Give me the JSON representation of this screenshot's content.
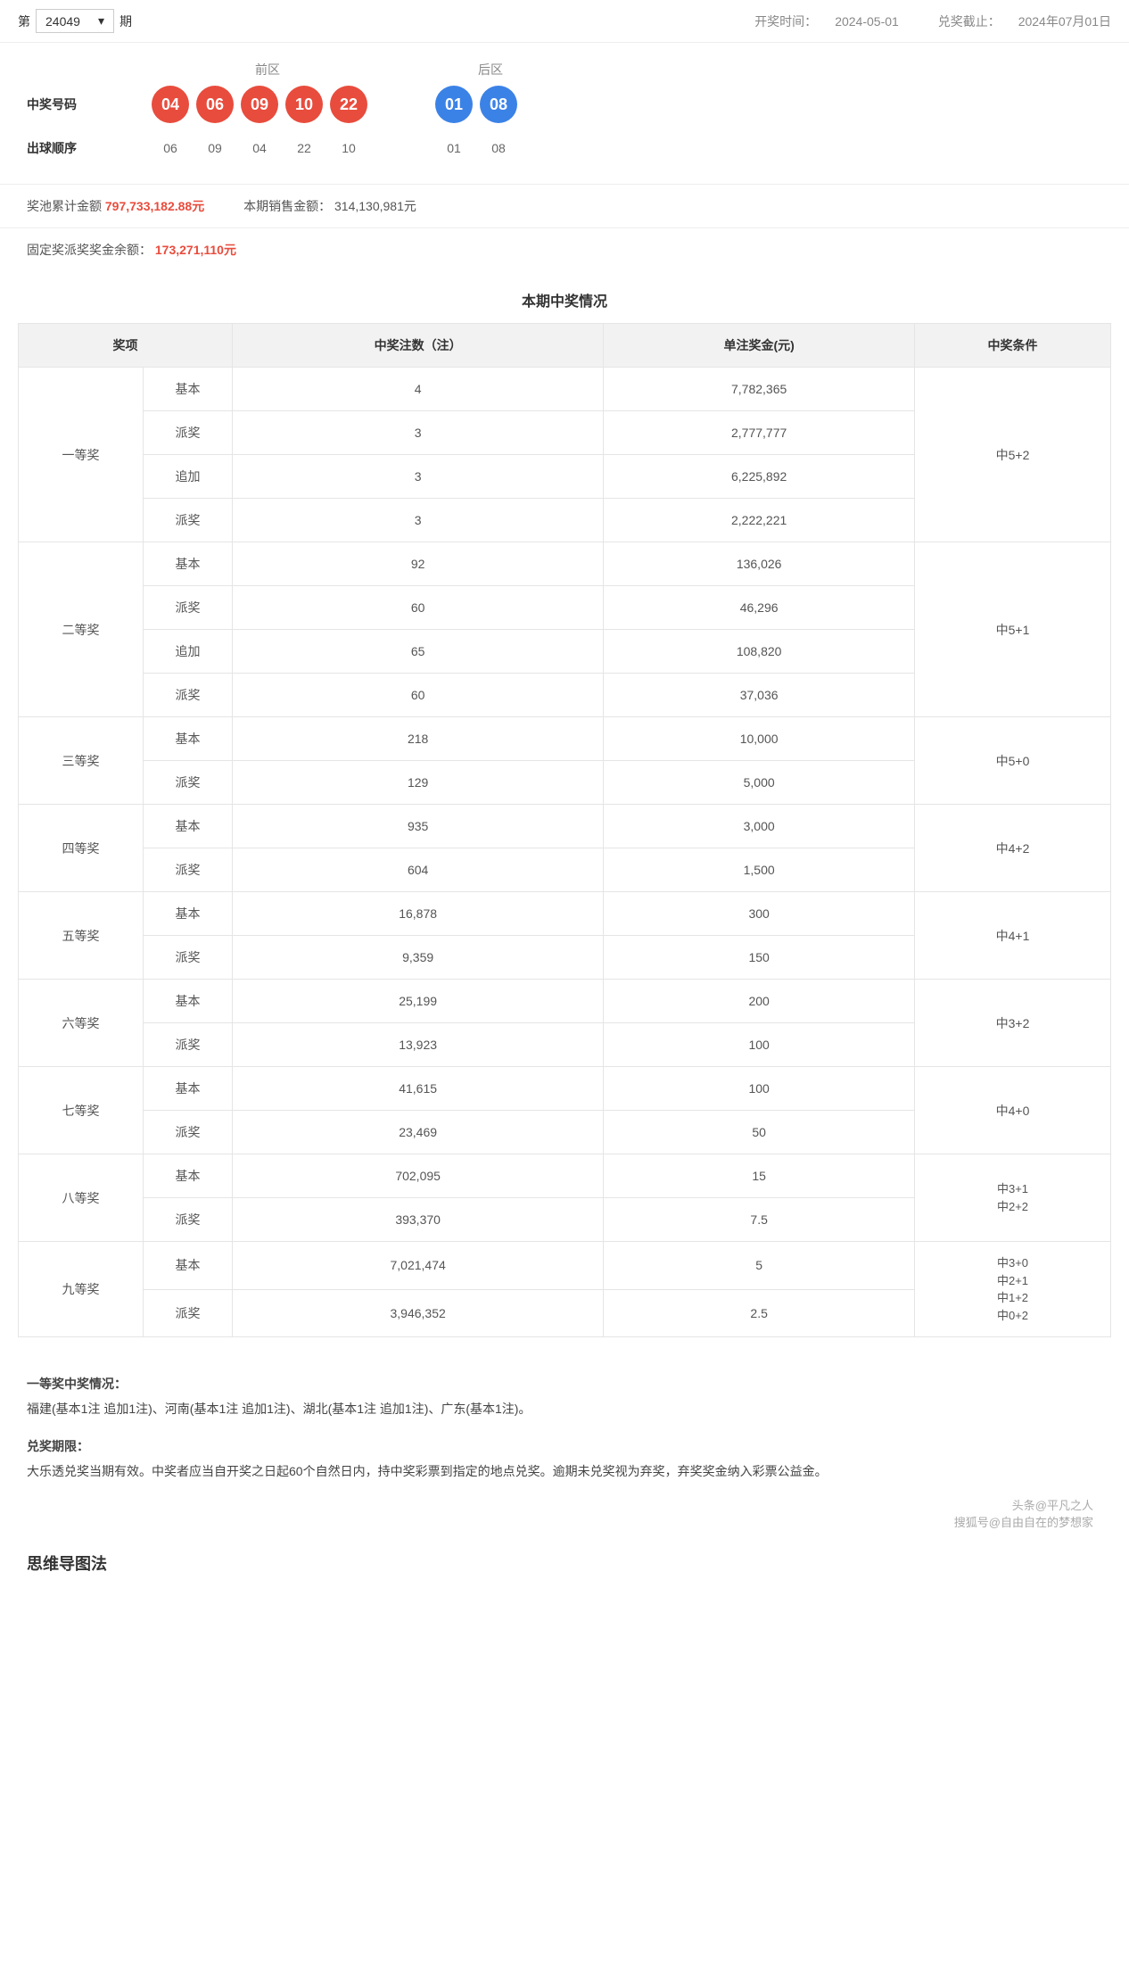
{
  "header": {
    "issue_prefix": "第",
    "issue_number": "24049",
    "issue_suffix": "期",
    "draw_time_label": "开奖时间：",
    "draw_time": "2024-05-01",
    "claim_deadline_label": "兑奖截止：",
    "claim_deadline": "2024年07月01日"
  },
  "zones": {
    "front": "前区",
    "back": "后区"
  },
  "labels": {
    "winning_numbers": "中奖号码",
    "draw_sequence": "出球顺序",
    "pool_label": "奖池累计金额",
    "pool_value": "797,733,182.88元",
    "sales_label": "本期销售金额：",
    "sales_value": "314,130,981元",
    "fixed_label": "固定奖派奖奖金余额：",
    "fixed_value": "173,271,110元"
  },
  "balls": {
    "front": [
      "04",
      "06",
      "09",
      "10",
      "22"
    ],
    "back": [
      "01",
      "08"
    ],
    "seq_front": [
      "06",
      "09",
      "04",
      "22",
      "10"
    ],
    "seq_back": [
      "01",
      "08"
    ]
  },
  "prize_section": {
    "title": "本期中奖情况",
    "columns": [
      "奖项",
      "",
      "中奖注数（注）",
      "单注奖金(元)",
      "中奖条件"
    ],
    "groups": [
      {
        "name": "一等奖",
        "cond": "中5+2",
        "rows": [
          [
            "基本",
            "4",
            "7,782,365"
          ],
          [
            "派奖",
            "3",
            "2,777,777"
          ],
          [
            "追加",
            "3",
            "6,225,892"
          ],
          [
            "派奖",
            "3",
            "2,222,221"
          ]
        ]
      },
      {
        "name": "二等奖",
        "cond": "中5+1",
        "rows": [
          [
            "基本",
            "92",
            "136,026"
          ],
          [
            "派奖",
            "60",
            "46,296"
          ],
          [
            "追加",
            "65",
            "108,820"
          ],
          [
            "派奖",
            "60",
            "37,036"
          ]
        ]
      },
      {
        "name": "三等奖",
        "cond": "中5+0",
        "rows": [
          [
            "基本",
            "218",
            "10,000"
          ],
          [
            "派奖",
            "129",
            "5,000"
          ]
        ]
      },
      {
        "name": "四等奖",
        "cond": "中4+2",
        "rows": [
          [
            "基本",
            "935",
            "3,000"
          ],
          [
            "派奖",
            "604",
            "1,500"
          ]
        ]
      },
      {
        "name": "五等奖",
        "cond": "中4+1",
        "rows": [
          [
            "基本",
            "16,878",
            "300"
          ],
          [
            "派奖",
            "9,359",
            "150"
          ]
        ]
      },
      {
        "name": "六等奖",
        "cond": "中3+2",
        "rows": [
          [
            "基本",
            "25,199",
            "200"
          ],
          [
            "派奖",
            "13,923",
            "100"
          ]
        ]
      },
      {
        "name": "七等奖",
        "cond": "中4+0",
        "rows": [
          [
            "基本",
            "41,615",
            "100"
          ],
          [
            "派奖",
            "23,469",
            "50"
          ]
        ]
      },
      {
        "name": "八等奖",
        "cond": [
          "中3+1",
          "中2+2"
        ],
        "rows": [
          [
            "基本",
            "702,095",
            "15"
          ],
          [
            "派奖",
            "393,370",
            "7.5"
          ]
        ]
      },
      {
        "name": "九等奖",
        "cond": [
          "中3+0",
          "中2+1",
          "中1+2",
          "中0+2"
        ],
        "rows": [
          [
            "基本",
            "7,021,474",
            "5"
          ],
          [
            "派奖",
            "3,946,352",
            "2.5"
          ]
        ]
      }
    ]
  },
  "notes": {
    "first_prize_title": "一等奖中奖情况：",
    "first_prize_text": "福建(基本1注 追加1注)、河南(基本1注 追加1注)、湖北(基本1注 追加1注)、广东(基本1注)。",
    "claim_title": "兑奖期限：",
    "claim_text": "大乐透兑奖当期有效。中奖者应当自开奖之日起60个自然日内，持中奖彩票到指定的地点兑奖。逾期未兑奖视为弃奖，弃奖奖金纳入彩票公益金。"
  },
  "footer": {
    "mind_map": "思维导图法"
  },
  "watermark": {
    "line1": "头条@平凡之人",
    "line2": "搜狐号@自由自在的梦想家"
  },
  "colors": {
    "red": "#e84c3d",
    "blue": "#3b82e6"
  }
}
